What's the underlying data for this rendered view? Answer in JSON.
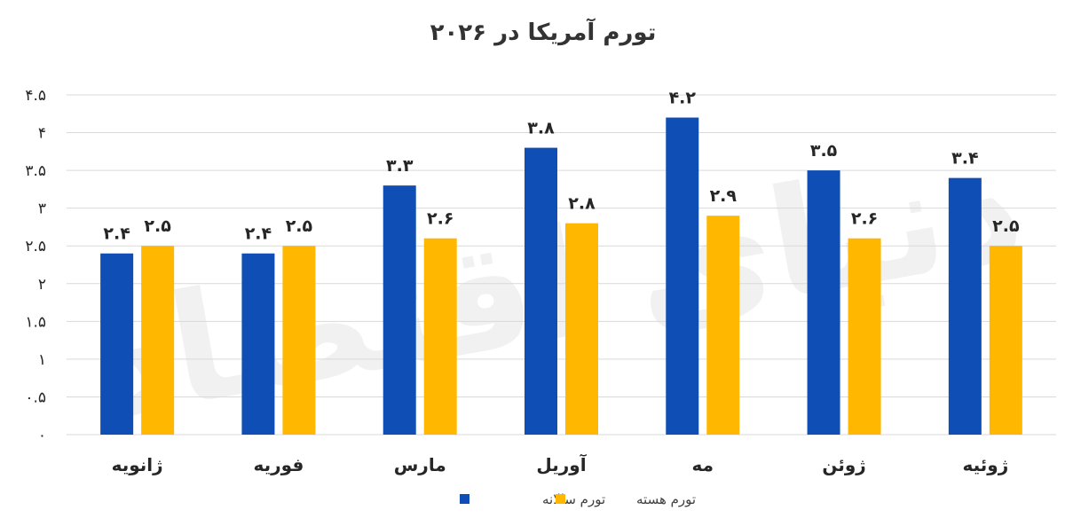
{
  "chart_data": {
    "type": "bar",
    "title": "تورم آمریکا در ۲۰۲۶",
    "categories": [
      "ژانویه",
      "فوریه",
      "مارس",
      "آوریل",
      "مه",
      "ژوئن",
      "ژوئیه"
    ],
    "series": [
      {
        "name": "تورم سالانه",
        "color": "#0F4FB5",
        "values": [
          2.4,
          2.4,
          3.3,
          3.8,
          4.2,
          3.5,
          3.4
        ],
        "labels": [
          "۲.۴",
          "۲.۴",
          "۳.۳",
          "۳.۸",
          "۴.۲",
          "۳.۵",
          "۳.۴"
        ]
      },
      {
        "name": "تورم هسته",
        "color": "#FFB700",
        "values": [
          2.5,
          2.5,
          2.6,
          2.8,
          2.9,
          2.6,
          2.5
        ],
        "labels": [
          "۲.۵",
          "۲.۵",
          "۲.۶",
          "۲.۸",
          "۲.۹",
          "۲.۶",
          "۲.۵"
        ]
      }
    ],
    "y_ticks": [
      0,
      0.5,
      1,
      1.5,
      2,
      2.5,
      3,
      3.5,
      4,
      4.5
    ],
    "y_tick_labels": [
      "۰",
      "۰.۵",
      "۱",
      "۱.۵",
      "۲",
      "۲.۵",
      "۳",
      "۳.۵",
      "۴",
      "۴.۵"
    ],
    "ylim": [
      0,
      4.5
    ],
    "grid": true,
    "legend": "bottom",
    "xlabel": "",
    "ylabel": ""
  },
  "watermark": "دنیای اقتصاد"
}
